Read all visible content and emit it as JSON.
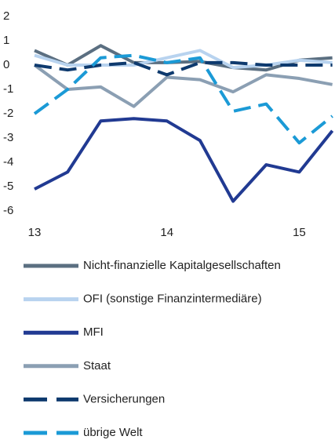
{
  "chart_data": {
    "type": "line",
    "x": [
      13,
      13.25,
      13.5,
      13.75,
      14,
      14.25,
      14.5,
      14.75,
      15,
      15.25
    ],
    "xlim": [
      13,
      15.27
    ],
    "xticks": [
      13,
      14,
      15
    ],
    "ylim": [
      -6,
      2
    ],
    "yticks": [
      -6,
      -5,
      -4,
      -3,
      -2,
      -1,
      0,
      1,
      2
    ],
    "grid": false,
    "series": [
      {
        "name": "Nicht-finanzielle Kapitalgesellschaften",
        "color": "#5b6f81",
        "dashed": false,
        "values": [
          0.6,
          0,
          0.8,
          0.1,
          0.1,
          0.15,
          -0.1,
          -0.2,
          0.2,
          0.3
        ]
      },
      {
        "name": "OFI (sonstige Finanzintermediäre)",
        "color": "#b8d3ef",
        "dashed": false,
        "values": [
          0.4,
          0,
          0,
          0,
          0.3,
          0.6,
          -0.1,
          0,
          0.2,
          0.1
        ]
      },
      {
        "name": "MFI",
        "color": "#213a92",
        "dashed": false,
        "values": [
          -5.1,
          -4.4,
          -2.3,
          -2.2,
          -2.3,
          -3.1,
          -5.6,
          -4.1,
          -4.4,
          -2.7
        ]
      },
      {
        "name": "Staat",
        "color": "#8b9fb3",
        "dashed": false,
        "values": [
          0,
          -1.0,
          -0.9,
          -1.7,
          -0.5,
          -0.6,
          -1.1,
          -0.4,
          -0.55,
          -0.8
        ]
      },
      {
        "name": "Versicherungen",
        "color": "#0e3a6e",
        "dashed": true,
        "values": [
          0,
          -0.2,
          0,
          0.1,
          -0.4,
          0.1,
          0.1,
          0,
          0,
          0
        ]
      },
      {
        "name": "übrige Welt",
        "color": "#1b9ad6",
        "dashed": true,
        "values": [
          -2.0,
          -1.0,
          0.3,
          0.4,
          0.1,
          0.3,
          -1.9,
          -1.6,
          -3.2,
          -2.1
        ]
      }
    ]
  }
}
